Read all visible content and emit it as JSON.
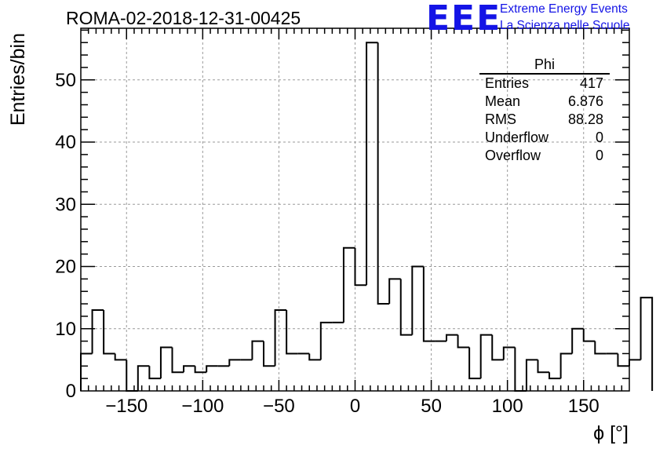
{
  "header": {
    "title": "ROMA-02-2018-12-31-00425",
    "logo_text": "EEE",
    "logo_line1": "Extreme Energy Events",
    "logo_line2": "La Scienza nelle Scuole",
    "logo_color": "#1414e6"
  },
  "stats": {
    "title": "Phi",
    "rows": [
      {
        "label": "Entries",
        "value": "417"
      },
      {
        "label": "Mean",
        "value": "6.876"
      },
      {
        "label": "RMS",
        "value": "88.28"
      },
      {
        "label": "Underflow",
        "value": "0"
      },
      {
        "label": "Overflow",
        "value": "0"
      }
    ]
  },
  "chart_data": {
    "type": "bar",
    "style": "histogram-step",
    "xlabel": "ϕ [°]",
    "ylabel": "Entries/bin",
    "xlim": [
      -180,
      180
    ],
    "ylim": [
      0,
      58.3
    ],
    "bin_width": 7.5,
    "x_ticks": [
      -150,
      -100,
      -50,
      0,
      50,
      100,
      150
    ],
    "y_ticks": [
      0,
      10,
      20,
      30,
      40,
      50
    ],
    "x_tick_labels": [
      "−150",
      "−100",
      "−50",
      "0",
      "50",
      "100",
      "150"
    ],
    "y_tick_labels": [
      "0",
      "10",
      "20",
      "30",
      "40",
      "50"
    ],
    "grid": true,
    "values": [
      6,
      13,
      6,
      5,
      0,
      4,
      2,
      7,
      3,
      4,
      3,
      4,
      4,
      5,
      5,
      8,
      4,
      13,
      6,
      6,
      5,
      11,
      11,
      23,
      17,
      56,
      14,
      18,
      9,
      20,
      8,
      8,
      9,
      7,
      2,
      9,
      5,
      7,
      0,
      5,
      3,
      2,
      6,
      10,
      8,
      6,
      6,
      4,
      5,
      15
    ]
  }
}
